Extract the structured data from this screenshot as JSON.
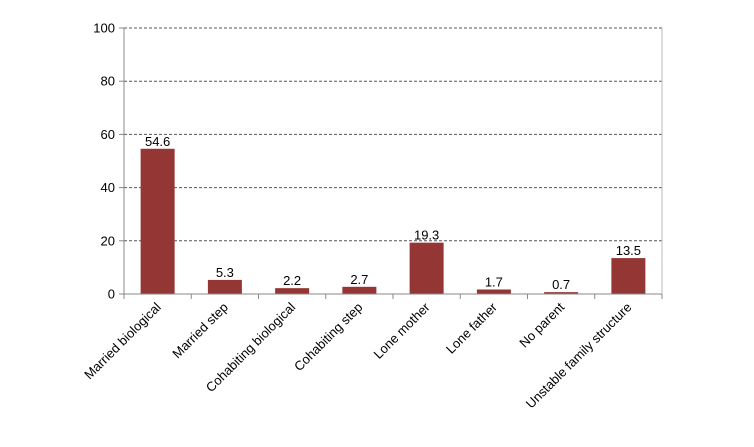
{
  "chart_data": {
    "type": "bar",
    "categories": [
      "Married biological",
      "Married step",
      "Cohabiting biological",
      "Cohabiting step",
      "Lone mother",
      "Lone father",
      "No parent",
      "Unstable family structure"
    ],
    "values": [
      54.6,
      5.3,
      2.2,
      2.7,
      19.3,
      1.7,
      0.7,
      13.5
    ],
    "data_labels": [
      "54.6",
      "5.3",
      "2.2",
      "2.7",
      "19.3",
      "1.7",
      "0.7",
      "13.5"
    ],
    "yticks": [
      "0",
      "20",
      "40",
      "60",
      "80",
      "100"
    ],
    "ylim": [
      0,
      100
    ],
    "grid": "horizontal dashed",
    "bar_color": "#943634",
    "title": "",
    "xlabel": "",
    "ylabel": ""
  }
}
